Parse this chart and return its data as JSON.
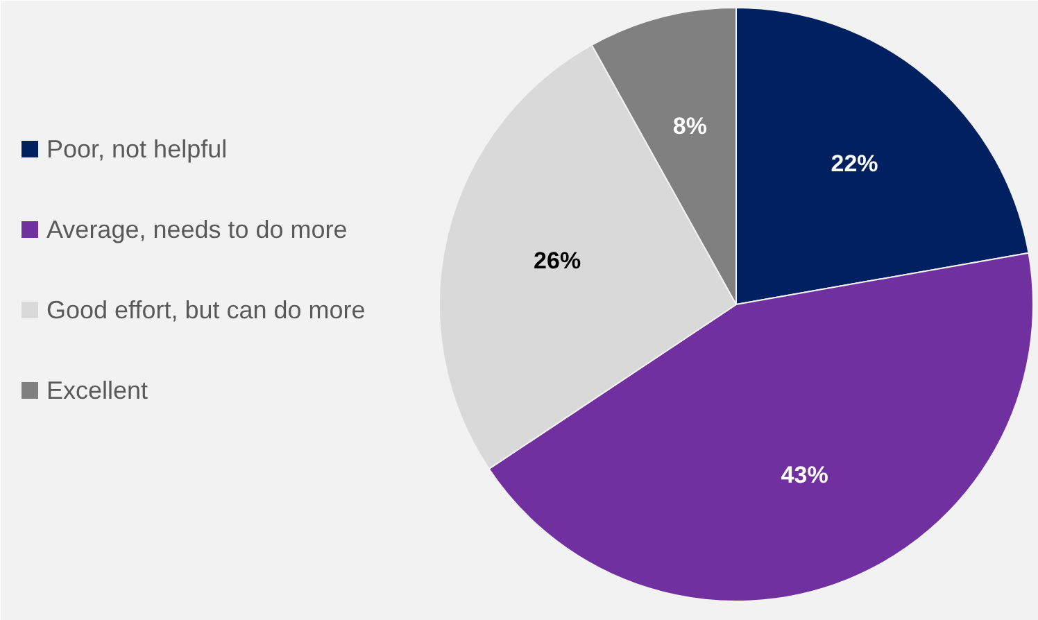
{
  "chart_data": {
    "type": "pie",
    "categories": [
      "Poor, not helpful",
      "Average, needs to do more",
      "Good effort, but can do more",
      "Excellent"
    ],
    "values": [
      22,
      43,
      26,
      8
    ],
    "colors": [
      "#002060",
      "#7030a0",
      "#d9d9d9",
      "#808080"
    ],
    "value_labels": [
      "22%",
      "43%",
      "26%",
      "8%"
    ],
    "legend": "left"
  }
}
